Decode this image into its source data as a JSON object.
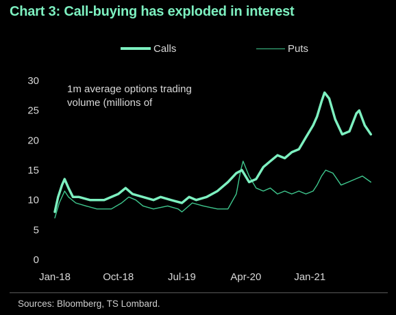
{
  "chart_data": {
    "type": "line",
    "title": "Chart 3: Call-buying has exploded in interest",
    "annotation_line1": "1m average options trading",
    "annotation_line2": "volume (millions of",
    "source": "Sources: Bloomberg, TS Lombard.",
    "x_tick_labels": [
      "Jan-18",
      "Oct-18",
      "Jul-19",
      "Apr-20",
      "Jan-21"
    ],
    "y_tick_labels": [
      "0",
      "5",
      "10",
      "15",
      "20",
      "25",
      "30"
    ],
    "ylim": [
      0,
      30
    ],
    "xlim": [
      "2018-01-01",
      "2021-10-01"
    ],
    "grid": false,
    "legend_position": "top",
    "series": [
      {
        "name": "Calls",
        "color": "#7df0c0",
        "points": [
          [
            "2018-01-01",
            8.0
          ],
          [
            "2018-01-15",
            10.5
          ],
          [
            "2018-02-01",
            12.5
          ],
          [
            "2018-02-12",
            13.5
          ],
          [
            "2018-03-01",
            12.0
          ],
          [
            "2018-03-20",
            10.5
          ],
          [
            "2018-04-15",
            10.5
          ],
          [
            "2018-06-01",
            10.0
          ],
          [
            "2018-08-01",
            10.0
          ],
          [
            "2018-09-01",
            10.5
          ],
          [
            "2018-10-01",
            11.0
          ],
          [
            "2018-11-01",
            12.0
          ],
          [
            "2018-12-01",
            11.0
          ],
          [
            "2019-01-15",
            10.5
          ],
          [
            "2019-03-01",
            10.0
          ],
          [
            "2019-04-01",
            10.5
          ],
          [
            "2019-05-15",
            10.0
          ],
          [
            "2019-07-01",
            9.5
          ],
          [
            "2019-08-01",
            10.5
          ],
          [
            "2019-09-01",
            10.0
          ],
          [
            "2019-10-15",
            10.5
          ],
          [
            "2019-12-01",
            11.5
          ],
          [
            "2020-01-15",
            13.0
          ],
          [
            "2020-02-20",
            14.5
          ],
          [
            "2020-03-15",
            15.0
          ],
          [
            "2020-04-15",
            13.0
          ],
          [
            "2020-05-15",
            13.5
          ],
          [
            "2020-06-15",
            15.5
          ],
          [
            "2020-07-15",
            16.5
          ],
          [
            "2020-08-15",
            17.5
          ],
          [
            "2020-09-15",
            17.0
          ],
          [
            "2020-10-15",
            18.0
          ],
          [
            "2020-11-15",
            18.5
          ],
          [
            "2020-12-15",
            20.5
          ],
          [
            "2021-01-15",
            22.5
          ],
          [
            "2021-02-01",
            24.0
          ],
          [
            "2021-02-20",
            26.5
          ],
          [
            "2021-03-05",
            28.0
          ],
          [
            "2021-03-25",
            27.0
          ],
          [
            "2021-04-20",
            23.5
          ],
          [
            "2021-05-20",
            21.0
          ],
          [
            "2021-06-20",
            21.5
          ],
          [
            "2021-07-20",
            24.5
          ],
          [
            "2021-08-01",
            25.0
          ],
          [
            "2021-08-25",
            22.5
          ],
          [
            "2021-09-20",
            21.0
          ]
        ]
      },
      {
        "name": "Puts",
        "color": "#3fc98f",
        "points": [
          [
            "2018-01-01",
            7.0
          ],
          [
            "2018-01-20",
            9.5
          ],
          [
            "2018-02-12",
            11.5
          ],
          [
            "2018-03-01",
            10.5
          ],
          [
            "2018-04-01",
            9.5
          ],
          [
            "2018-05-15",
            9.0
          ],
          [
            "2018-07-01",
            8.5
          ],
          [
            "2018-09-01",
            8.5
          ],
          [
            "2018-10-15",
            9.5
          ],
          [
            "2018-11-15",
            10.5
          ],
          [
            "2018-12-15",
            10.0
          ],
          [
            "2019-01-15",
            9.0
          ],
          [
            "2019-03-01",
            8.5
          ],
          [
            "2019-05-01",
            9.0
          ],
          [
            "2019-06-15",
            8.5
          ],
          [
            "2019-07-01",
            8.0
          ],
          [
            "2019-08-15",
            9.5
          ],
          [
            "2019-10-01",
            9.0
          ],
          [
            "2019-12-01",
            8.5
          ],
          [
            "2020-01-15",
            8.5
          ],
          [
            "2020-02-20",
            11.0
          ],
          [
            "2020-03-10",
            15.0
          ],
          [
            "2020-03-20",
            16.5
          ],
          [
            "2020-04-15",
            14.0
          ],
          [
            "2020-05-15",
            12.0
          ],
          [
            "2020-06-15",
            11.5
          ],
          [
            "2020-07-15",
            12.0
          ],
          [
            "2020-08-15",
            11.0
          ],
          [
            "2020-09-15",
            11.5
          ],
          [
            "2020-10-15",
            11.0
          ],
          [
            "2020-11-15",
            11.5
          ],
          [
            "2020-12-15",
            11.0
          ],
          [
            "2021-01-15",
            11.5
          ],
          [
            "2021-02-01",
            12.5
          ],
          [
            "2021-02-20",
            14.0
          ],
          [
            "2021-03-10",
            15.0
          ],
          [
            "2021-04-10",
            14.5
          ],
          [
            "2021-05-15",
            12.5
          ],
          [
            "2021-06-15",
            13.0
          ],
          [
            "2021-07-15",
            13.5
          ],
          [
            "2021-08-15",
            14.0
          ],
          [
            "2021-09-20",
            13.0
          ]
        ]
      }
    ]
  }
}
